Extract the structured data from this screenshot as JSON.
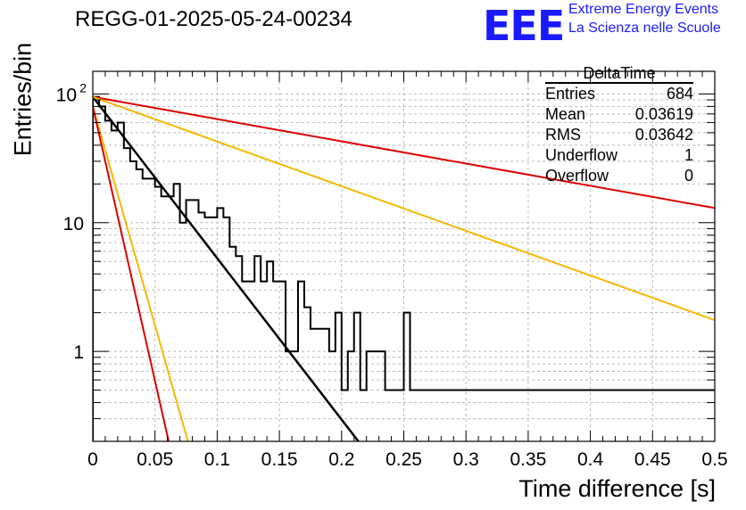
{
  "header": {
    "title": "REGG-01-2025-05-24-00234",
    "logo_text": "EEE",
    "org_line1": "Extreme Energy Events",
    "org_line2": "La Scienza nelle Scuole"
  },
  "stats_box": {
    "name": "DeltaTime",
    "rows": [
      {
        "label": "Entries",
        "value": "684"
      },
      {
        "label": "Mean",
        "value": "0.03619"
      },
      {
        "label": "RMS",
        "value": "0.03642"
      },
      {
        "label": "Underflow",
        "value": "1"
      },
      {
        "label": "Overflow",
        "value": "0"
      }
    ]
  },
  "colors": {
    "histogram": "#000000",
    "fit": "#000000",
    "red_curves": "#dd0000",
    "orange_curves": "#f5b800",
    "grid": "#bbbbbb"
  },
  "chart_data": {
    "type": "line",
    "xlabel": "Time difference [s]",
    "ylabel": "Entries/bin",
    "xlim": [
      0,
      0.5
    ],
    "ylim": [
      0.2,
      150
    ],
    "y_scale": "log",
    "grid": true,
    "x_ticks": [
      "0",
      "0.05",
      "0.1",
      "0.15",
      "0.2",
      "0.25",
      "0.3",
      "0.35",
      "0.4",
      "0.45",
      "0.5"
    ],
    "y_ticks": [
      {
        "value": 1,
        "label": "1"
      },
      {
        "value": 10,
        "label": "10"
      },
      {
        "value": 100,
        "label": "10",
        "sup": "2"
      }
    ],
    "histogram": {
      "bin_width": 0.005,
      "values": [
        95,
        80,
        62,
        52,
        60,
        38,
        30,
        26,
        22,
        22,
        19,
        16,
        16,
        20,
        10,
        15,
        15,
        12,
        11,
        11,
        13,
        11,
        6.5,
        5.5,
        3.5,
        3.5,
        5.5,
        3.5,
        5,
        3.5,
        3.5,
        1,
        1,
        3.5,
        2.2,
        1.5,
        1.5,
        1.5,
        1,
        2,
        0.5,
        1,
        2,
        0.5,
        1,
        1,
        1,
        0.5,
        0.5,
        0.5,
        2,
        0.5,
        0.5,
        0.5,
        0.5,
        0.5,
        0.5,
        0.5,
        0.5,
        0.5,
        0.5,
        0.5,
        0.5,
        0.5,
        0.5,
        0.5,
        0.5,
        0.5,
        0.5,
        0.5,
        0.5,
        0.5,
        0.5,
        0.5,
        0.5,
        0.5,
        0.5,
        0.5,
        0.5,
        0.5,
        0.5,
        0.5,
        0.5,
        0.5,
        0.5,
        0.5,
        0.5,
        0.5,
        0.5,
        0.5,
        0.5,
        0.5,
        0.5,
        0.5,
        0.5,
        0.5,
        0.5,
        0.5,
        0.5,
        0.5
      ]
    },
    "series": [
      {
        "color": "black",
        "points": [
          [
            0,
            95
          ],
          [
            0.2135,
            0.2
          ]
        ]
      },
      {
        "color": "red",
        "points": [
          [
            0,
            95
          ],
          [
            0.5,
            13
          ]
        ]
      },
      {
        "color": "orange",
        "points": [
          [
            0,
            95
          ],
          [
            0.5,
            1.75
          ]
        ]
      },
      {
        "color": "orange",
        "points": [
          [
            0,
            80
          ],
          [
            0.0765,
            0.2
          ]
        ]
      },
      {
        "color": "red",
        "points": [
          [
            0,
            80
          ],
          [
            0.061,
            0.2
          ]
        ]
      }
    ]
  }
}
